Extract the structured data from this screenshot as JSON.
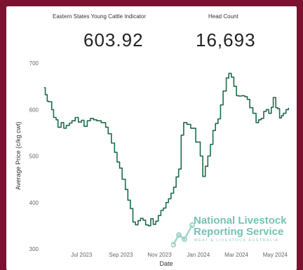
{
  "kpis": [
    {
      "label": "Eastern States Young Cattle Indicator",
      "value": "603.92"
    },
    {
      "label": "Head Count",
      "value": "16,693"
    }
  ],
  "watermark": {
    "line1": "National Livestock",
    "line2": "Reporting Service",
    "subline": "MEAT & LIVESTOCK AUSTRALIA"
  },
  "chart_data": {
    "type": "line",
    "xlabel": "Date",
    "ylabel": "Average Price (c/kg cwt)",
    "ylim": [
      300,
      700
    ],
    "yticks": [
      300,
      400,
      500,
      600,
      700
    ],
    "xlim": [
      "2023-05-01",
      "2024-05-25"
    ],
    "xticks": [
      {
        "date": "2023-07-01",
        "label": "Jul 2023"
      },
      {
        "date": "2023-09-01",
        "label": "Sep 2023"
      },
      {
        "date": "2023-11-01",
        "label": "Nov 2023"
      },
      {
        "date": "2024-01-01",
        "label": "Jan 2024"
      },
      {
        "date": "2024-03-01",
        "label": "Mar 2024"
      },
      {
        "date": "2024-05-01",
        "label": "May 2024"
      }
    ],
    "grid": false,
    "line_color": "#1e6b4a",
    "series": [
      {
        "x": [
          "2023-05-03",
          "2023-05-05",
          "2023-05-08",
          "2023-05-10",
          "2023-05-15",
          "2023-05-18",
          "2023-05-22",
          "2023-05-25",
          "2023-05-30",
          "2023-06-03",
          "2023-06-07",
          "2023-06-12",
          "2023-06-16",
          "2023-06-21",
          "2023-06-26",
          "2023-07-01",
          "2023-07-05",
          "2023-07-10",
          "2023-07-15",
          "2023-07-20",
          "2023-07-25",
          "2023-08-01",
          "2023-08-08",
          "2023-08-12",
          "2023-08-17",
          "2023-08-22",
          "2023-08-26",
          "2023-08-30",
          "2023-09-03",
          "2023-09-08",
          "2023-09-12",
          "2023-09-16",
          "2023-09-20",
          "2023-09-24",
          "2023-09-28",
          "2023-10-02",
          "2023-10-06",
          "2023-10-10",
          "2023-10-14",
          "2023-10-18",
          "2023-10-22",
          "2023-10-26",
          "2023-10-30",
          "2023-11-03",
          "2023-11-07",
          "2023-11-11",
          "2023-11-15",
          "2023-11-19",
          "2023-11-23",
          "2023-11-27",
          "2023-12-01",
          "2023-12-05",
          "2023-12-09",
          "2023-12-14",
          "2023-12-20",
          "2023-12-28",
          "2024-01-04",
          "2024-01-08",
          "2024-01-12",
          "2024-01-16",
          "2024-01-20",
          "2024-01-24",
          "2024-01-28",
          "2024-02-01",
          "2024-02-05",
          "2024-02-09",
          "2024-02-14",
          "2024-02-18",
          "2024-02-22",
          "2024-02-26",
          "2024-03-01",
          "2024-03-05",
          "2024-03-09",
          "2024-03-14",
          "2024-03-18",
          "2024-03-22",
          "2024-03-27",
          "2024-04-01",
          "2024-04-05",
          "2024-04-09",
          "2024-04-13",
          "2024-04-17",
          "2024-04-21",
          "2024-04-25",
          "2024-04-28",
          "2024-05-02",
          "2024-05-05",
          "2024-05-08",
          "2024-05-11",
          "2024-05-14",
          "2024-05-18",
          "2024-05-22"
        ],
        "y": [
          647,
          632,
          618,
          617,
          600,
          583,
          578,
          562,
          572,
          560,
          566,
          571,
          576,
          583,
          573,
          577,
          564,
          576,
          581,
          578,
          576,
          572,
          562,
          548,
          528,
          508,
          487,
          474,
          450,
          428,
          405,
          387,
          358,
          352,
          361,
          366,
          362,
          352,
          350,
          365,
          353,
          360,
          372,
          383,
          388,
          400,
          408,
          420,
          433,
          455,
          472,
          545,
          572,
          568,
          560,
          530,
          500,
          456,
          478,
          500,
          525,
          555,
          570,
          580,
          610,
          640,
          668,
          678,
          670,
          650,
          630,
          629,
          630,
          628,
          622,
          604,
          592,
          572,
          578,
          581,
          596,
          600,
          592,
          605,
          626,
          604,
          602,
          582,
          587,
          592,
          600,
          604
        ]
      }
    ]
  }
}
